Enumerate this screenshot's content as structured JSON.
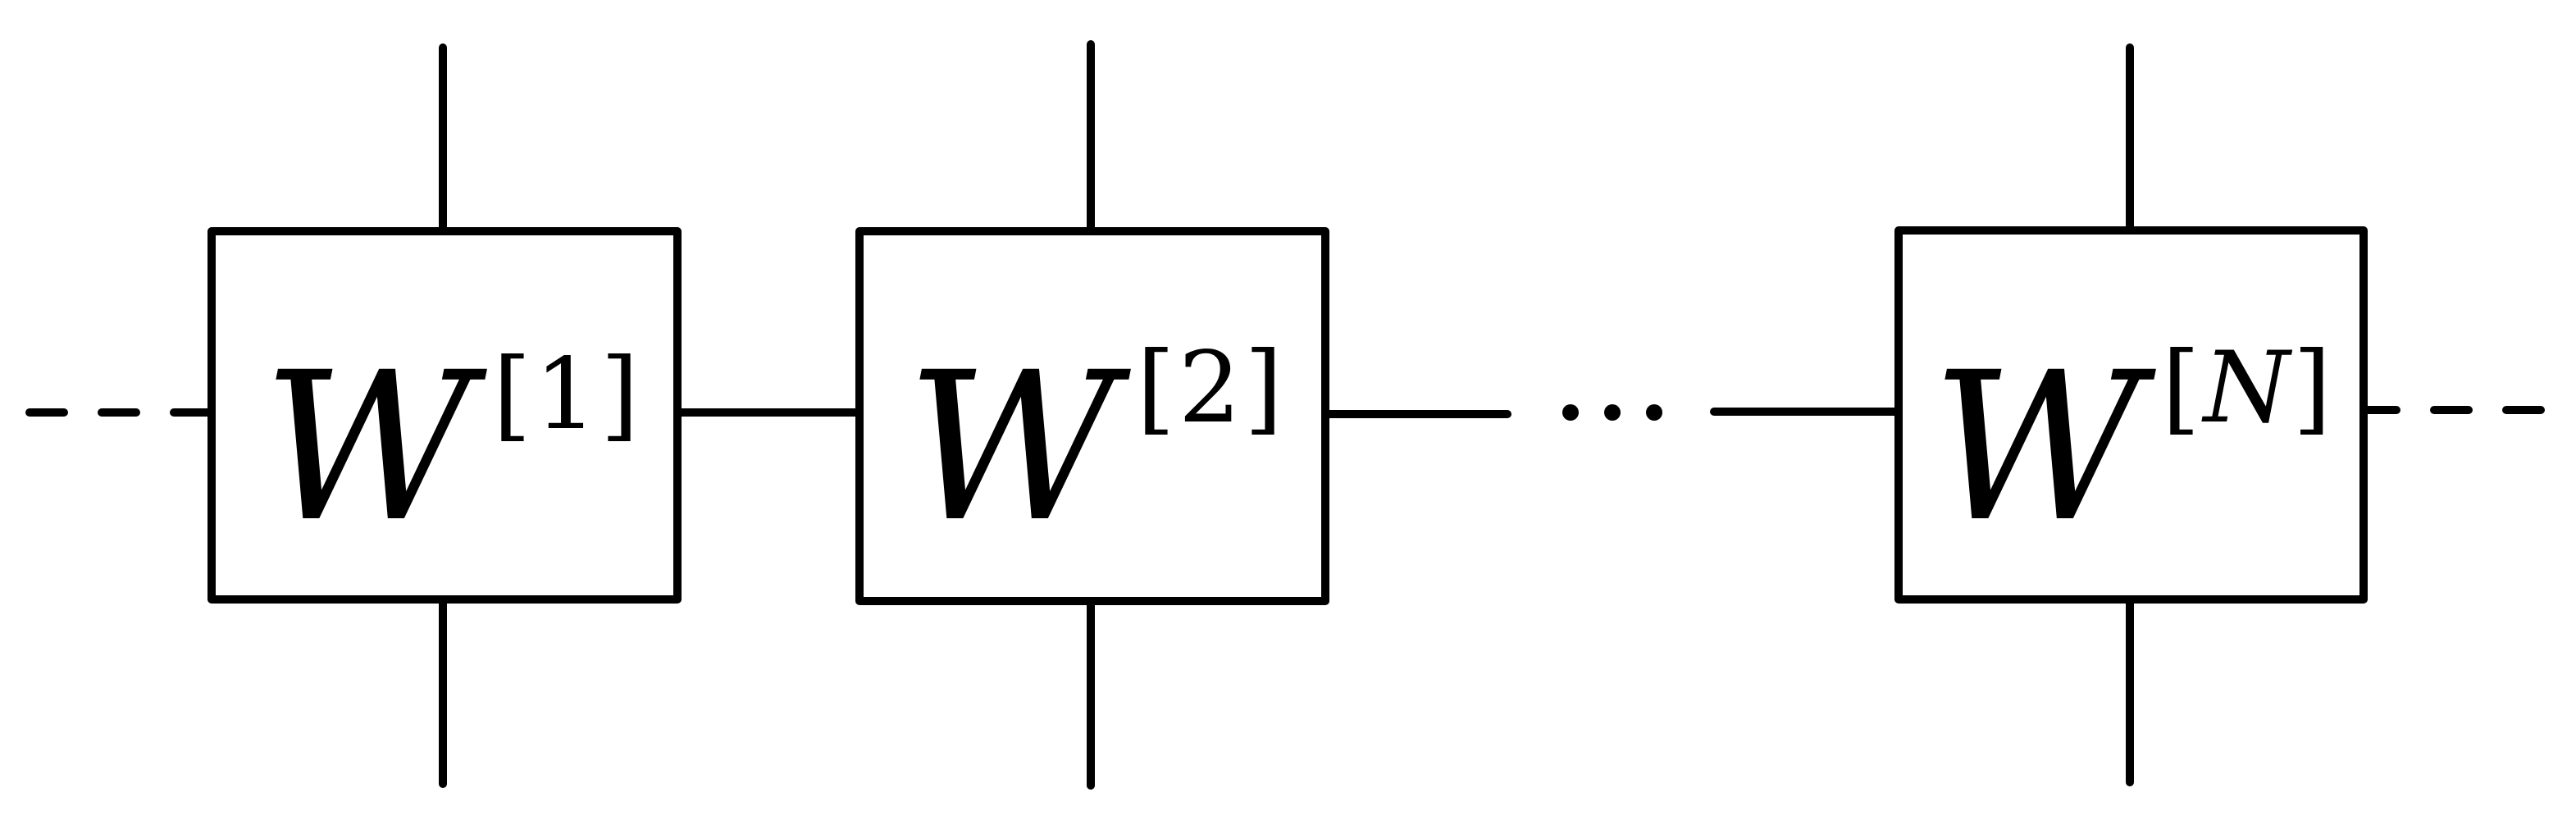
{
  "diagram": {
    "tensors": [
      {
        "symbol": "W",
        "index": "1",
        "index_italic": false
      },
      {
        "symbol": "W",
        "index": "2",
        "index_italic": false
      },
      {
        "symbol": "W",
        "index": "N",
        "index_italic": true
      }
    ],
    "superscript_open": "[",
    "superscript_close": "]",
    "ellipsis": "..."
  }
}
